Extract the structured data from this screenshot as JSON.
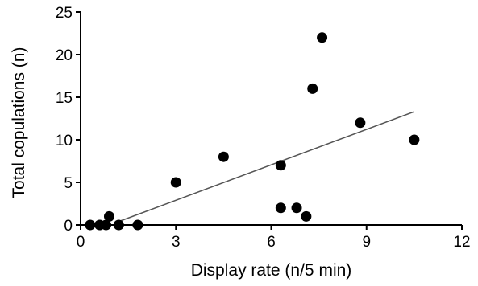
{
  "chart_data": {
    "type": "scatter",
    "title": "",
    "xlabel": "Display rate (n/5 min)",
    "ylabel": "Total copulations (n)",
    "xlim": [
      0,
      12
    ],
    "ylim": [
      0,
      25
    ],
    "x_ticks": [
      0,
      3,
      6,
      9,
      12
    ],
    "y_ticks": [
      0,
      5,
      10,
      15,
      20,
      25
    ],
    "grid": false,
    "legend": "none",
    "points": [
      {
        "x": 0.3,
        "y": 0
      },
      {
        "x": 0.6,
        "y": 0
      },
      {
        "x": 0.8,
        "y": 0
      },
      {
        "x": 0.9,
        "y": 1
      },
      {
        "x": 1.2,
        "y": 0
      },
      {
        "x": 1.8,
        "y": 0
      },
      {
        "x": 3.0,
        "y": 5
      },
      {
        "x": 4.5,
        "y": 8
      },
      {
        "x": 6.3,
        "y": 7
      },
      {
        "x": 6.3,
        "y": 2
      },
      {
        "x": 6.8,
        "y": 2
      },
      {
        "x": 7.1,
        "y": 1
      },
      {
        "x": 7.3,
        "y": 16
      },
      {
        "x": 7.6,
        "y": 22
      },
      {
        "x": 8.8,
        "y": 12
      },
      {
        "x": 10.5,
        "y": 10
      }
    ],
    "trendline": {
      "x": [
        1.2,
        10.5
      ],
      "y": [
        0.4,
        13.3
      ]
    },
    "colors": {
      "points": "#000000",
      "axes": "#000000",
      "trendline": "#555555"
    }
  }
}
